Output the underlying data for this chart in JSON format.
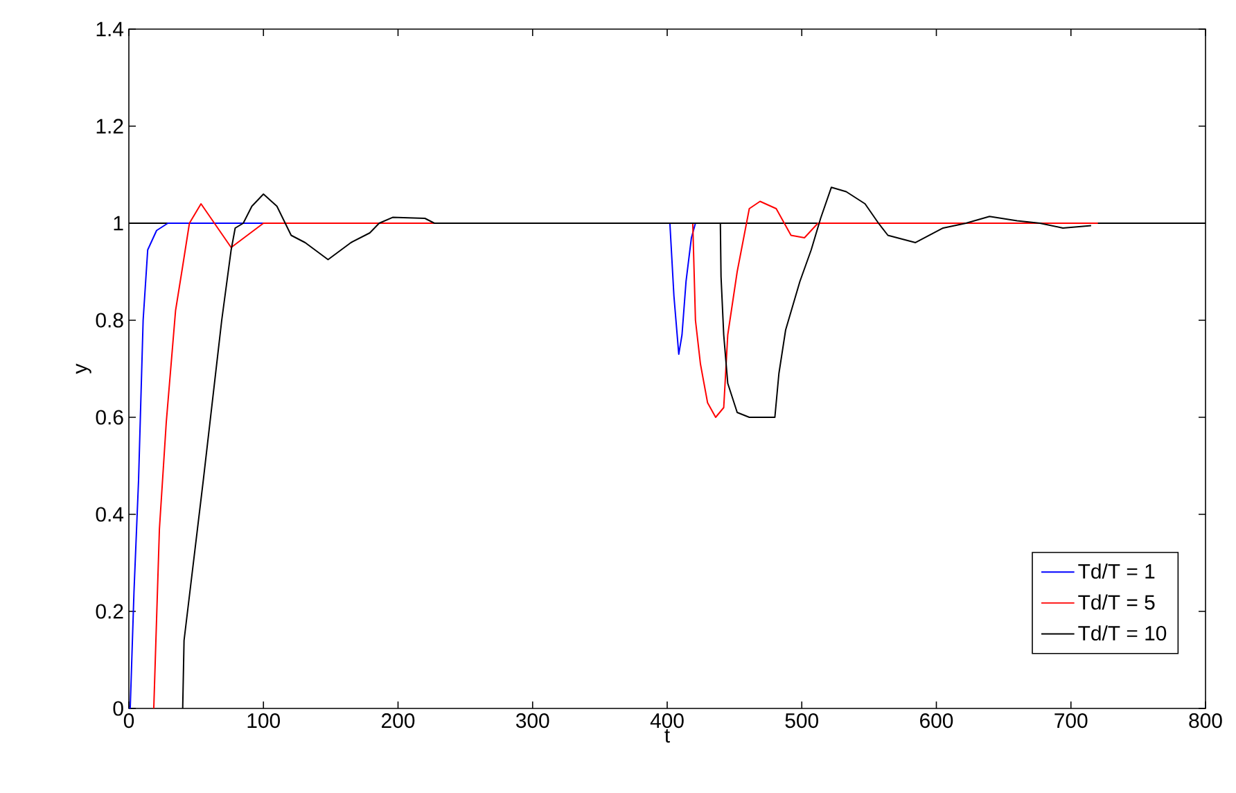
{
  "chart_data": {
    "type": "line",
    "xlabel": "t",
    "ylabel": "y",
    "xlim": [
      0,
      800
    ],
    "ylim": [
      0,
      1.4
    ],
    "xticks": [
      0,
      100,
      200,
      300,
      400,
      500,
      600,
      700,
      800
    ],
    "yticks": [
      0,
      0.2,
      0.4,
      0.6,
      0.8,
      1,
      1.2,
      1.4
    ],
    "grid": false,
    "legend": "bottom right",
    "line_style": "solid",
    "ref_lines": [
      {
        "axis": "y",
        "value": 1,
        "color": "#000000"
      }
    ],
    "series": [
      {
        "name": "Td/T = 1",
        "color": "#0000ff",
        "x": [
          0,
          1,
          3.8,
          7.2,
          10.6,
          14,
          20.6,
          29,
          400,
          402,
          405,
          408.6,
          411,
          414,
          418,
          421
        ],
        "values": [
          0,
          0,
          0.24,
          0.47,
          0.8,
          0.945,
          0.985,
          1,
          1,
          1,
          0.85,
          0.73,
          0.77,
          0.88,
          0.97,
          1
        ]
      },
      {
        "name": "Td/T = 5",
        "color": "#ff0000",
        "x": [
          18.5,
          22.7,
          27.8,
          34.7,
          39.9,
          45,
          53.6,
          76,
          100,
          419,
          421,
          424.7,
          430,
          436,
          442,
          445,
          452,
          461,
          469,
          481,
          492,
          502,
          512,
          720
        ],
        "values": [
          0,
          0.37,
          0.59,
          0.82,
          0.91,
          1,
          1.04,
          0.95,
          1,
          1,
          0.8,
          0.71,
          0.63,
          0.6,
          0.62,
          0.77,
          0.9,
          1.03,
          1.045,
          1.03,
          0.975,
          0.97,
          1,
          1
        ]
      },
      {
        "name": "Td/T = 10",
        "color": "#000000",
        "x": [
          40,
          41,
          55.3,
          69,
          76,
          79,
          85,
          91.4,
          100,
          110,
          120.6,
          131,
          148,
          165,
          179,
          186,
          196,
          220,
          227,
          439.5,
          440,
          442,
          445,
          452,
          461,
          480,
          483,
          488,
          498.6,
          507,
          514,
          522,
          533,
          547,
          557,
          564,
          584.5,
          605,
          622,
          639.5,
          660,
          677,
          694,
          715
        ],
        "values": [
          0,
          0.14,
          0.47,
          0.8,
          0.945,
          0.99,
          1,
          1.035,
          1.06,
          1.035,
          0.975,
          0.96,
          0.925,
          0.96,
          0.98,
          1,
          1.012,
          1.01,
          1,
          1,
          0.89,
          0.77,
          0.67,
          0.61,
          0.6,
          0.6,
          0.69,
          0.78,
          0.88,
          0.945,
          1.01,
          1.074,
          1.065,
          1.04,
          1,
          0.975,
          0.96,
          0.99,
          1,
          1.014,
          1.005,
          1,
          0.99,
          0.995
        ]
      }
    ]
  }
}
